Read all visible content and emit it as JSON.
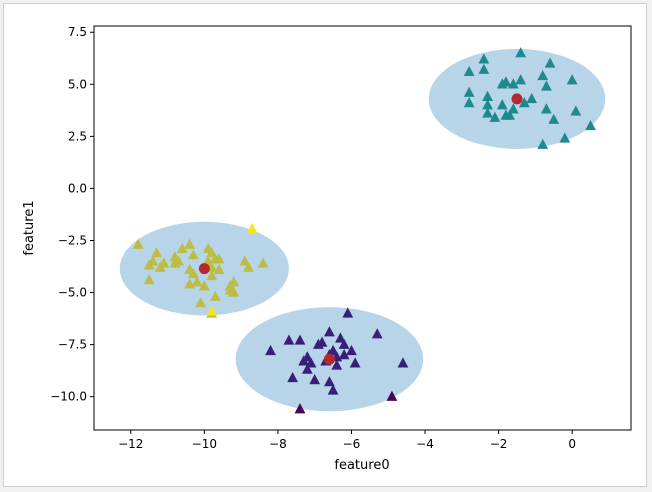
{
  "chart_data": {
    "type": "scatter",
    "title": "",
    "xlabel": "feature0",
    "ylabel": "feature1",
    "xlim": [
      -13,
      1.6
    ],
    "ylim": [
      -11.6,
      7.8
    ],
    "xticks": [
      -12,
      -10,
      -8,
      -6,
      -4,
      -2,
      0
    ],
    "xtick_labels": [
      "−12",
      "−10",
      "−8",
      "−6",
      "−4",
      "−2",
      "0"
    ],
    "yticks": [
      7.5,
      5.0,
      2.5,
      0.0,
      -2.5,
      -5.0,
      -7.5,
      -10.0
    ],
    "ytick_labels": [
      "7.5",
      "5.0",
      "2.5",
      "0.0",
      "−2.5",
      "−5.0",
      "−7.5",
      "−10.0"
    ],
    "grid": false,
    "legend": "none",
    "cluster_regions": [
      {
        "cx": -10.0,
        "cy": -3.85,
        "rx": 2.3,
        "ry": 2.25,
        "color": "#b8d4e8"
      },
      {
        "cx": -6.6,
        "cy": -8.2,
        "rx": 2.55,
        "ry": 2.5,
        "color": "#b8d4e8"
      },
      {
        "cx": -1.5,
        "cy": 4.3,
        "rx": 2.4,
        "ry": 2.4,
        "color": "#b8d4e8"
      }
    ],
    "centers": [
      {
        "x": -10.0,
        "y": -3.85
      },
      {
        "x": -6.6,
        "y": -8.2
      },
      {
        "x": -1.5,
        "y": 4.3
      }
    ],
    "center_color": "#b5292e",
    "series": [
      {
        "color": "#bcbd45",
        "points": [
          [
            -11.8,
            -2.7
          ],
          [
            -11.3,
            -3.1
          ],
          [
            -11.4,
            -3.5
          ],
          [
            -11.1,
            -3.6
          ],
          [
            -11.5,
            -3.7
          ],
          [
            -11.2,
            -3.8
          ],
          [
            -11.5,
            -4.4
          ],
          [
            -10.8,
            -3.3
          ],
          [
            -10.8,
            -3.6
          ],
          [
            -10.6,
            -2.9
          ],
          [
            -10.7,
            -3.5
          ],
          [
            -10.4,
            -2.7
          ],
          [
            -10.3,
            -3.2
          ],
          [
            -10.4,
            -3.9
          ],
          [
            -10.3,
            -4.1
          ],
          [
            -10.4,
            -4.6
          ],
          [
            -10.2,
            -4.5
          ],
          [
            -10.0,
            -4.7
          ],
          [
            -10.1,
            -5.5
          ],
          [
            -9.9,
            -2.9
          ],
          [
            -9.8,
            -3.1
          ],
          [
            -9.7,
            -3.4
          ],
          [
            -9.9,
            -3.5
          ],
          [
            -9.6,
            -3.4
          ],
          [
            -9.8,
            -3.8
          ],
          [
            -9.6,
            -3.9
          ],
          [
            -9.8,
            -4.2
          ],
          [
            -9.7,
            -5.2
          ],
          [
            -9.3,
            -4.7
          ],
          [
            -9.2,
            -4.5
          ],
          [
            -9.2,
            -5.0
          ],
          [
            -9.3,
            -4.9
          ],
          [
            -8.9,
            -3.5
          ],
          [
            -8.8,
            -3.8
          ],
          [
            -8.4,
            -3.6
          ],
          [
            -9.8,
            -6.0
          ]
        ]
      },
      {
        "color": "#f0e51f",
        "points": [
          [
            -8.7,
            -1.95
          ],
          [
            -9.8,
            -5.9
          ]
        ]
      },
      {
        "color": "#38207a",
        "points": [
          [
            -8.2,
            -7.8
          ],
          [
            -7.7,
            -7.3
          ],
          [
            -7.4,
            -7.3
          ],
          [
            -7.3,
            -8.3
          ],
          [
            -7.2,
            -8.1
          ],
          [
            -7.1,
            -8.4
          ],
          [
            -7.2,
            -8.7
          ],
          [
            -7.6,
            -9.1
          ],
          [
            -7.0,
            -9.2
          ],
          [
            -6.9,
            -7.5
          ],
          [
            -6.8,
            -7.4
          ],
          [
            -6.7,
            -8.3
          ],
          [
            -6.6,
            -8.0
          ],
          [
            -6.6,
            -6.9
          ],
          [
            -6.5,
            -7.8
          ],
          [
            -6.4,
            -8.1
          ],
          [
            -6.2,
            -8.0
          ],
          [
            -6.3,
            -7.2
          ],
          [
            -6.2,
            -7.5
          ],
          [
            -6.0,
            -7.8
          ],
          [
            -6.1,
            -6.0
          ],
          [
            -6.4,
            -8.5
          ],
          [
            -6.6,
            -9.3
          ],
          [
            -6.5,
            -9.7
          ],
          [
            -5.9,
            -8.4
          ],
          [
            -5.3,
            -7.0
          ],
          [
            -4.6,
            -8.4
          ]
        ]
      },
      {
        "color": "#46075a",
        "points": [
          [
            -7.4,
            -10.6
          ],
          [
            -4.9,
            -10.0
          ]
        ]
      },
      {
        "color": "#1f8a8e",
        "points": [
          [
            -2.8,
            5.6
          ],
          [
            -2.4,
            6.2
          ],
          [
            -2.4,
            5.7
          ],
          [
            -2.8,
            4.6
          ],
          [
            -2.8,
            4.1
          ],
          [
            -2.3,
            4.4
          ],
          [
            -2.3,
            4.0
          ],
          [
            -2.3,
            3.6
          ],
          [
            -2.1,
            3.4
          ],
          [
            -1.9,
            5.0
          ],
          [
            -1.9,
            4.0
          ],
          [
            -1.8,
            5.1
          ],
          [
            -1.8,
            3.5
          ],
          [
            -1.6,
            5.0
          ],
          [
            -1.6,
            3.8
          ],
          [
            -1.7,
            3.5
          ],
          [
            -1.4,
            5.2
          ],
          [
            -1.4,
            6.5
          ],
          [
            -1.3,
            4.1
          ],
          [
            -1.1,
            4.3
          ],
          [
            -0.8,
            5.4
          ],
          [
            -0.7,
            4.9
          ],
          [
            -0.7,
            3.8
          ],
          [
            -0.6,
            6.0
          ],
          [
            -0.5,
            3.3
          ],
          [
            -0.2,
            2.4
          ],
          [
            0.0,
            5.2
          ],
          [
            0.1,
            3.7
          ],
          [
            0.5,
            3.0
          ],
          [
            -0.8,
            2.1
          ]
        ]
      }
    ]
  }
}
